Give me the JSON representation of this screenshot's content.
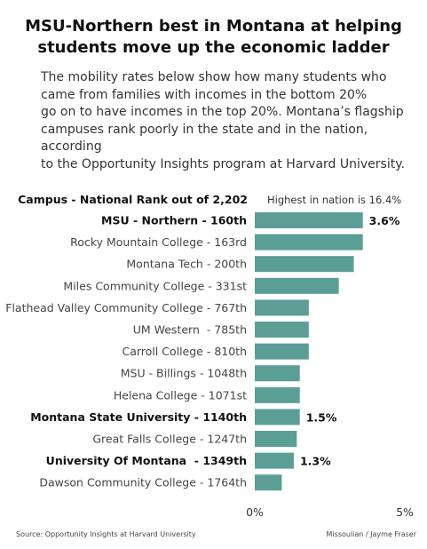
{
  "header": {
    "title_line1": "MSU-Northern best in Montana at helping",
    "title_line2": "students move up the economic ladder",
    "subtitle_lines": [
      "The mobility rates below show how many students who",
      "came from families with incomes in the bottom 20%",
      "go on to have incomes in the top 20%. Montana’s flagship",
      "campuses rank poorly in the state and in the nation, according",
      "to the Opportunity Insights program at Harvard University."
    ]
  },
  "chart_data": {
    "type": "bar",
    "orientation": "horizontal",
    "column_header": "Campus - National Rank out of 2,202",
    "note": "Highest in nation is 16.4%",
    "categories": [
      "MSU - Northern - 160th",
      "Rocky Mountain College - 163rd",
      "Montana Tech - 200th",
      "Miles Community College - 331st",
      "Flathead Valley Community College - 767th",
      "UM Western  - 785th",
      "Carroll College - 810th",
      "MSU - Billings - 1048th",
      "Helena College - 1071st",
      "Montana State University - 1140th",
      "Great Falls College - 1247th",
      "University Of Montana  - 1349th",
      "Dawson Community College - 1764th"
    ],
    "values": [
      3.6,
      3.6,
      3.3,
      2.8,
      1.8,
      1.8,
      1.8,
      1.5,
      1.5,
      1.5,
      1.4,
      1.3,
      0.9
    ],
    "bold_categories": [
      "MSU - Northern - 160th",
      "Montana State University - 1140th",
      "University Of Montana  - 1349th"
    ],
    "data_labels": [
      {
        "category": "MSU - Northern - 160th",
        "label": "3.6%"
      },
      {
        "category": "Montana State University - 1140th",
        "label": "1.5%"
      },
      {
        "category": "University Of Montana  - 1349th",
        "label": "1.3%"
      }
    ],
    "xlim": [
      0,
      5
    ],
    "x_tick_labels": [
      "0%",
      "5%"
    ],
    "grid": false,
    "bar_color": "#5b9e96"
  },
  "footer": {
    "source": "Source: Opportunity Insights at Harvard University",
    "credit": "Missoulian / Jayme Fraser"
  }
}
